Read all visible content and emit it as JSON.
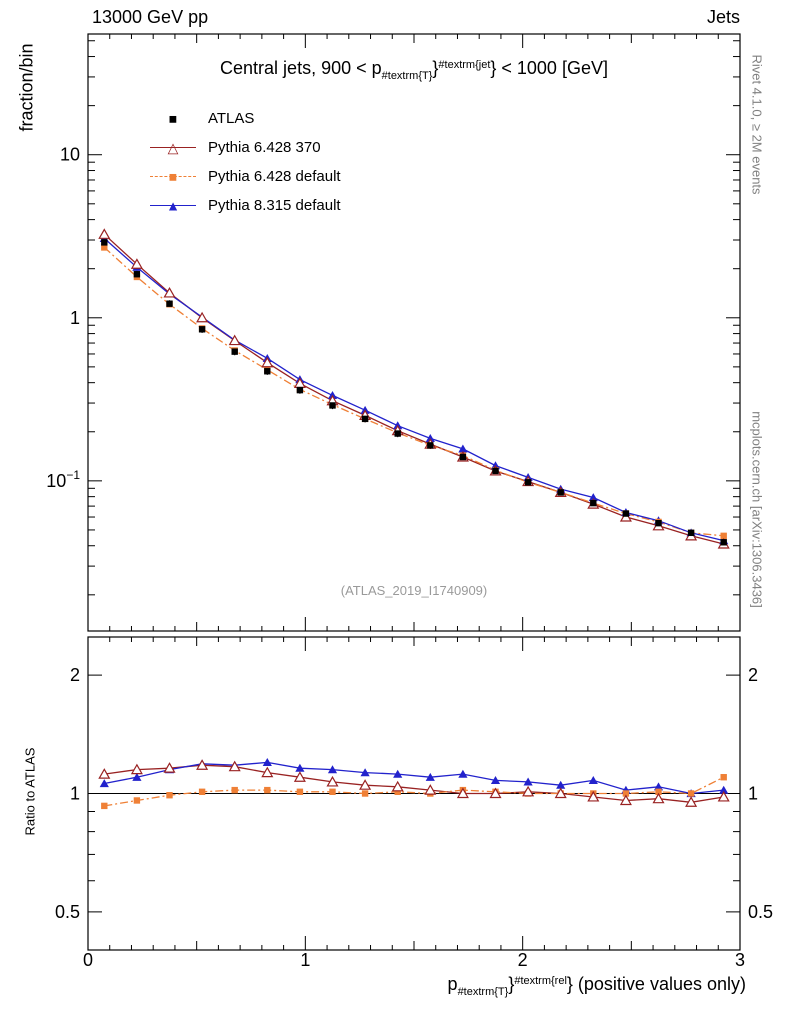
{
  "header": {
    "left": "13000 GeV pp",
    "right": "Jets"
  },
  "side_notes": {
    "top_right": "Rivet 4.1.0, ≥ 2M events",
    "bottom_right": "mcplots.cern.ch [arXiv:1306.3436]"
  },
  "watermark": "(ATLAS_2019_I1740909)",
  "title": {
    "prefix": "Central jets, 900 < p",
    "sub": "#textrm{T}",
    "mid": "}",
    "sup": "#textrm{jet",
    "suffix": "} < 1000 [GeV]"
  },
  "xaxis_title": {
    "prefix": "p",
    "sub": "#textrm{T}",
    "mid": "}",
    "sup": "#textrm{rel",
    "suffix": "} (positive values only)"
  },
  "legend": {
    "items": [
      {
        "label": "ATLAS",
        "glyph": "■",
        "color": "#000000",
        "line": "none"
      },
      {
        "label": "Pythia 6.428 370",
        "glyph": "△",
        "color": "#992222",
        "line": "solid"
      },
      {
        "label": "Pythia 6.428 default",
        "glyph": "■",
        "color": "#ef8036",
        "line": "dashdot"
      },
      {
        "label": "Pythia 8.315 default",
        "glyph": "▲",
        "color": "#2222cc",
        "line": "solid"
      }
    ]
  },
  "chart_data": {
    "type": "line",
    "title": "Central jets, 900 < p_{#textrm{T}}^{#textrm{jet}} < 1000 [GeV]",
    "xlabel": "p_{#textrm{T}}^{#textrm{rel}} (positive values only)",
    "xlim": [
      0,
      3
    ],
    "xticks": [
      0,
      1,
      2,
      3
    ],
    "x": [
      0.075,
      0.225,
      0.375,
      0.525,
      0.675,
      0.825,
      0.975,
      1.125,
      1.275,
      1.425,
      1.575,
      1.725,
      1.875,
      2.025,
      2.175,
      2.325,
      2.475,
      2.625,
      2.775,
      2.925
    ],
    "main": {
      "ylabel": "fraction/bin",
      "yscale": "log",
      "ylim": [
        0.012,
        55
      ],
      "ytick_style": "pow",
      "ytick_labels": [
        "10",
        "1",
        "10⁻¹"
      ],
      "series": [
        {
          "name": "ATLAS",
          "color": "#000000",
          "marker": "square-filled",
          "line": "none",
          "err": 0.05,
          "values": [
            2.9,
            1.85,
            1.22,
            0.85,
            0.62,
            0.47,
            0.36,
            0.29,
            0.24,
            0.195,
            0.165,
            0.14,
            0.115,
            0.098,
            0.085,
            0.073,
            0.063,
            0.055,
            0.048,
            0.042
          ]
        },
        {
          "name": "Pythia 6.428 370",
          "color": "#992222",
          "marker": "triangle-open",
          "line": "solid",
          "values": [
            3.25,
            2.13,
            1.42,
            1.0,
            0.725,
            0.53,
            0.396,
            0.31,
            0.252,
            0.203,
            0.168,
            0.14,
            0.115,
            0.099,
            0.085,
            0.072,
            0.06,
            0.053,
            0.046,
            0.041
          ]
        },
        {
          "name": "Pythia 6.428 default",
          "color": "#ef8036",
          "marker": "square-filled",
          "line": "dashdot",
          "values": [
            2.7,
            1.78,
            1.21,
            0.86,
            0.63,
            0.48,
            0.364,
            0.293,
            0.24,
            0.197,
            0.165,
            0.143,
            0.116,
            0.098,
            0.085,
            0.073,
            0.063,
            0.056,
            0.048,
            0.046
          ]
        },
        {
          "name": "Pythia 8.315 default",
          "color": "#2222cc",
          "marker": "triangle-filled",
          "line": "solid",
          "values": [
            3.07,
            2.04,
            1.4,
            1.01,
            0.73,
            0.564,
            0.418,
            0.334,
            0.271,
            0.218,
            0.182,
            0.157,
            0.124,
            0.105,
            0.089,
            0.079,
            0.064,
            0.057,
            0.048,
            0.043
          ]
        }
      ]
    },
    "ratio": {
      "ylabel": "Ratio to ATLAS",
      "yscale": "log",
      "ylim": [
        0.4,
        2.5
      ],
      "ytick_style": "plain",
      "yticks": [
        0.5,
        1,
        2
      ],
      "reference_line": 1.0,
      "series": [
        {
          "name": "Pythia 6.428 370",
          "color": "#992222",
          "marker": "triangle-open",
          "line": "solid",
          "values": [
            1.12,
            1.15,
            1.16,
            1.18,
            1.17,
            1.13,
            1.1,
            1.07,
            1.05,
            1.04,
            1.02,
            1.0,
            1.0,
            1.01,
            1.0,
            0.98,
            0.96,
            0.97,
            0.95,
            0.98
          ]
        },
        {
          "name": "Pythia 6.428 default",
          "color": "#ef8036",
          "marker": "square-filled",
          "line": "dashdot",
          "values": [
            0.93,
            0.96,
            0.99,
            1.01,
            1.02,
            1.02,
            1.01,
            1.01,
            1.0,
            1.01,
            1.0,
            1.02,
            1.01,
            1.0,
            1.0,
            1.0,
            1.0,
            1.01,
            1.0,
            1.1
          ]
        },
        {
          "name": "Pythia 8.315 default",
          "color": "#2222cc",
          "marker": "triangle-filled",
          "line": "solid",
          "values": [
            1.06,
            1.1,
            1.15,
            1.19,
            1.18,
            1.2,
            1.16,
            1.15,
            1.13,
            1.12,
            1.1,
            1.12,
            1.08,
            1.07,
            1.05,
            1.08,
            1.02,
            1.04,
            1.0,
            1.02
          ]
        }
      ]
    }
  }
}
